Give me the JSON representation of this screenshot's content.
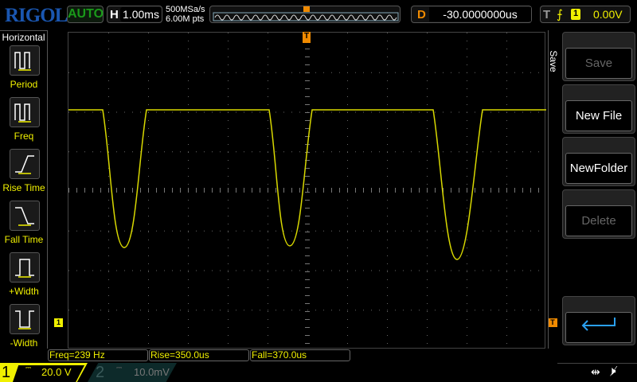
{
  "header": {
    "logo": "RIGOL",
    "run_status": "AUTO",
    "timebase_label": "H",
    "timebase": "1.00ms",
    "sample_rate": "500MSa/s",
    "memory_depth": "6.00M pts",
    "delay_label": "D",
    "delay": "-30.0000000us",
    "trigger_label": "T",
    "trigger_source": "1",
    "trigger_level": "0.00V"
  },
  "measure_menu": {
    "title": "Horizontal",
    "items": [
      {
        "label": "Period"
      },
      {
        "label": "Freq"
      },
      {
        "label": "Rise Time"
      },
      {
        "label": "Fall Time"
      },
      {
        "label": "+Width"
      },
      {
        "label": "-Width"
      }
    ]
  },
  "save_menu": {
    "title": "Save",
    "buttons": [
      {
        "label": "Save",
        "enabled": false
      },
      {
        "label": "New File",
        "enabled": true
      },
      {
        "label": "NewFolder",
        "enabled": true
      },
      {
        "label": "Delete",
        "enabled": false
      }
    ]
  },
  "measurements": [
    "Freq=239 Hz",
    "Rise=350.0us",
    "Fall=370.0us"
  ],
  "channels": [
    {
      "number": "1",
      "scale": "20.0 V",
      "active": true,
      "color": "#f0f000"
    },
    {
      "number": "2",
      "scale": "10.0mV",
      "active": false,
      "color": "#1a6a6a"
    }
  ],
  "markers": {
    "ch1_ground": "1",
    "trigger_level": "T",
    "trigger_position": "T"
  },
  "colors": {
    "ch1": "#f0f000",
    "trigger": "#f08a00",
    "brand": "#1a56b0"
  }
}
